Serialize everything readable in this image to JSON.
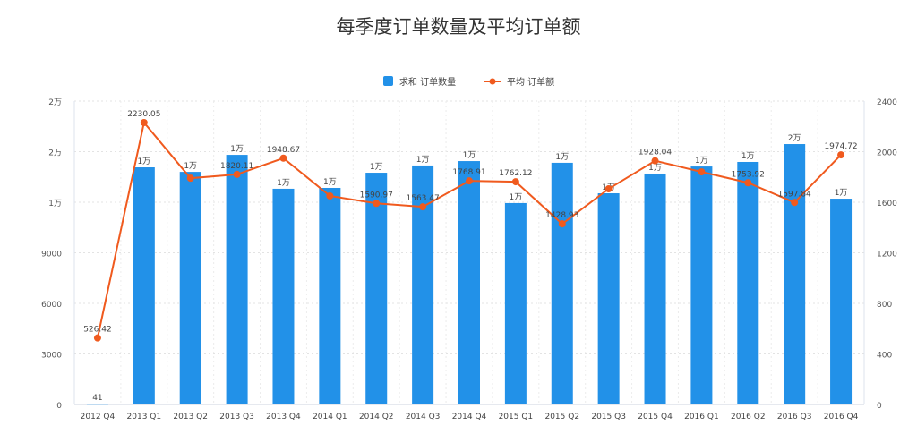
{
  "chart_data": {
    "type": "bar",
    "title": "每季度订单数量及平均订单额",
    "categories": [
      "2012 Q4",
      "2013 Q1",
      "2013 Q2",
      "2013 Q3",
      "2013 Q4",
      "2014 Q1",
      "2014 Q2",
      "2014 Q3",
      "2014 Q4",
      "2015 Q1",
      "2015 Q2",
      "2015 Q3",
      "2015 Q4",
      "2016 Q1",
      "2016 Q2",
      "2016 Q3",
      "2016 Q4"
    ],
    "legend_position": "top",
    "grid": true,
    "y_left": {
      "range": [
        0,
        18000
      ],
      "ticks": [
        "0",
        "3000",
        "6000",
        "9000",
        "1万",
        "2万",
        "2万"
      ]
    },
    "y_right": {
      "range": [
        0,
        2400
      ],
      "ticks": [
        "0",
        "400",
        "800",
        "1200",
        "1600",
        "2000",
        "2400"
      ]
    },
    "series": [
      {
        "name": "求和 订单数量",
        "type": "bar",
        "axis": "left",
        "color": "#2291e8",
        "values": [
          41,
          14070,
          13800,
          14810,
          12800,
          12850,
          13750,
          14180,
          14440,
          11950,
          14340,
          12530,
          13700,
          14120,
          14390,
          15450,
          12210
        ],
        "labels": [
          "41",
          "1万",
          "1万",
          "1万",
          "1万",
          "1万",
          "1万",
          "1万",
          "1万",
          "1万",
          "1万",
          "1万",
          "1万",
          "1万",
          "1万",
          "2万",
          "1万"
        ]
      },
      {
        "name": "平均 订单额",
        "type": "line",
        "axis": "right",
        "color": "#f05a1e",
        "values": [
          526.42,
          2230.05,
          1790,
          1820.11,
          1948.67,
          1650,
          1590.97,
          1563.47,
          1768.91,
          1762.12,
          1428.93,
          1706,
          1928.04,
          1840,
          1753.92,
          1597.84,
          1974.72
        ],
        "labels": [
          "526.42",
          "2230.05",
          "",
          "1820.11",
          "1948.67",
          "",
          "1590.97",
          "1563.47",
          "1768.91",
          "1762.12",
          "1428.93",
          "",
          "1928.04",
          "",
          "1753.92",
          "1597.84",
          "1974.72"
        ]
      }
    ]
  }
}
